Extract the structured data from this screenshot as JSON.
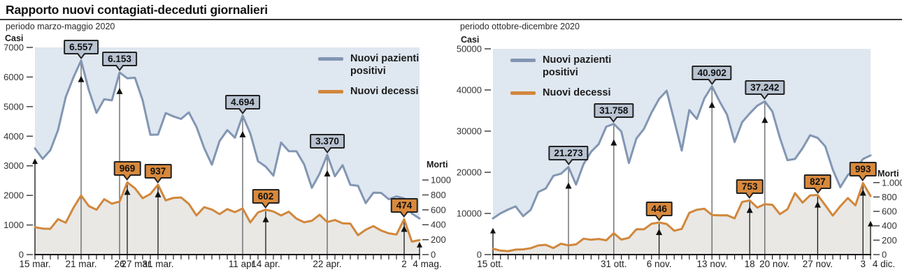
{
  "header": {
    "title": "Rapporto nuovi contagiati-deceduti giornalieri"
  },
  "legend": {
    "items": [
      {
        "id": "cases",
        "label": "Nuovi pazienti positivi",
        "color": "#8296b3"
      },
      {
        "id": "deaths",
        "label": "Nuovi decessi",
        "color": "#d1873c"
      }
    ]
  },
  "colors": {
    "cases_line": "#8296b3",
    "deaths_line": "#d1873c",
    "cases_fill": "#dfe7f0",
    "deaths_fill": "#e9e8e5",
    "callout_cases_bg": "#b9c4d2",
    "callout_deaths_bg": "#d8893c",
    "callout_border": "#222222",
    "annotation_line_cases": "#5d6166",
    "annotation_line_deaths": "#1a1a1a",
    "axis": "#111111",
    "tick_label": "#333333"
  },
  "chart_data": [
    {
      "type": "line",
      "subtitle": "periodo marzo-maggio 2020",
      "y_left": {
        "label": "Casi",
        "max": 7000,
        "ticks": [
          "7000",
          "6000",
          "5000",
          "4000",
          "3000",
          "2000",
          "1000",
          "0"
        ]
      },
      "y_right": {
        "label": "Morti",
        "max": 1000,
        "ticks": [
          "1000",
          "800",
          "600",
          "400",
          "200",
          "0"
        ],
        "cases_equivalent": 2520
      },
      "x_ticks": [
        {
          "label": "15 mar.",
          "day": 0
        },
        {
          "label": "21 mar.",
          "day": 6
        },
        {
          "label": "26",
          "day": 11
        },
        {
          "label": "27 mar.",
          "day": 12,
          "dx": 14
        },
        {
          "label": "31 mar.",
          "day": 16
        },
        {
          "label": "11 apr.",
          "day": 27
        },
        {
          "label": "14 apr.",
          "day": 30
        },
        {
          "label": "22 apr.",
          "day": 38
        },
        {
          "label": "2",
          "day": 48
        },
        {
          "label": "4 mag.",
          "day": 50,
          "dx": 11
        }
      ],
      "series": [
        {
          "id": "cases",
          "name": "Nuovi pazienti positivi",
          "axis": "left",
          "values": [
            3590,
            3233,
            3526,
            4207,
            5322,
            5986,
            6557,
            5560,
            4789,
            5249,
            5210,
            6153,
            5959,
            5974,
            5217,
            4050,
            4053,
            4782,
            4668,
            4585,
            4805,
            4316,
            3599,
            3039,
            3836,
            4204,
            3951,
            4694,
            4092,
            3153,
            2972,
            2667,
            3786,
            3493,
            3491,
            3047,
            2256,
            2729,
            3370,
            2646,
            3021,
            2357,
            2324,
            1739,
            2091,
            2086,
            1872,
            1965,
            1900,
            1389,
            1221
          ]
        },
        {
          "id": "deaths",
          "name": "Nuovi decessi",
          "axis": "right",
          "values": [
            368,
            349,
            345,
            475,
            427,
            627,
            793,
            651,
            601,
            743,
            683,
            712,
            969,
            889,
            756,
            812,
            937,
            727,
            760,
            766,
            681,
            525,
            636,
            604,
            542,
            610,
            570,
            619,
            431,
            566,
            602,
            578,
            525,
            575,
            482,
            433,
            454,
            534,
            437,
            464,
            420,
            415,
            260,
            333,
            382,
            323,
            285,
            269,
            474,
            174,
            195
          ]
        }
      ],
      "annotations": [
        {
          "series": "cases",
          "day": 6,
          "label": "6.557"
        },
        {
          "series": "cases",
          "day": 11,
          "label": "6.153"
        },
        {
          "series": "cases",
          "day": 27,
          "label": "4.694"
        },
        {
          "series": "cases",
          "day": 38,
          "label": "3.370"
        },
        {
          "series": "deaths",
          "day": 12,
          "label": "969"
        },
        {
          "series": "deaths",
          "day": 16,
          "label": "937"
        },
        {
          "series": "deaths",
          "day": 30,
          "label": "602"
        },
        {
          "series": "deaths",
          "day": 48,
          "label": "474"
        }
      ],
      "edge_markers": [
        {
          "day": 0,
          "tip_cases": 3250
        },
        {
          "day": 50,
          "tip_cases": 430
        }
      ]
    },
    {
      "type": "line",
      "subtitle": "periodo ottobre-dicembre 2020",
      "y_left": {
        "label": "Casi",
        "max": 50000,
        "ticks": [
          "50000",
          "40000",
          "30000",
          "20000",
          "10000",
          "0"
        ]
      },
      "y_right": {
        "label": "Morti",
        "max": 1000,
        "ticks": [
          "1.000",
          "800",
          "600",
          "400",
          "200",
          "0"
        ],
        "cases_equivalent": 17500
      },
      "x_ticks": [
        {
          "label": "15 ott.",
          "day": 0,
          "dx": -4
        },
        {
          "label": "31 ott.",
          "day": 16
        },
        {
          "label": "6 nov.",
          "day": 22
        },
        {
          "label": "13 nov.",
          "day": 29
        },
        {
          "label": "18",
          "day": 34
        },
        {
          "label": "20 nov.",
          "day": 36,
          "dx": 14
        },
        {
          "label": "27 nov.",
          "day": 43
        },
        {
          "label": "3",
          "day": 49
        },
        {
          "label": "4 dic.",
          "day": 50,
          "dx": 19
        }
      ],
      "series": [
        {
          "id": "cases",
          "name": "Nuovi pazienti positivi",
          "axis": "left",
          "values": [
            8804,
            10010,
            10925,
            11705,
            9338,
            10874,
            15199,
            16079,
            19143,
            19644,
            21273,
            17012,
            21994,
            24991,
            26831,
            31084,
            31758,
            29907,
            22253,
            28244,
            30550,
            34505,
            37809,
            39811,
            32616,
            25271,
            35098,
            32961,
            37978,
            40902,
            37255,
            33979,
            27354,
            32191,
            34283,
            36176,
            37242,
            34767,
            28337,
            22930,
            23232,
            25853,
            29003,
            28352,
            26323,
            20648,
            16377,
            19350,
            20709,
            23225,
            24099
          ]
        },
        {
          "id": "deaths",
          "name": "Nuovi decessi",
          "axis": "right",
          "values": [
            83,
            55,
            47,
            69,
            73,
            89,
            127,
            136,
            91,
            151,
            128,
            141,
            221,
            205,
            217,
            199,
            297,
            208,
            233,
            353,
            352,
            428,
            446,
            425,
            331,
            356,
            580,
            623,
            636,
            550,
            544,
            546,
            504,
            731,
            753,
            653,
            699,
            692,
            562,
            630,
            853,
            722,
            822,
            827,
            686,
            541,
            672,
            785,
            684,
            993,
            814
          ]
        }
      ],
      "annotations": [
        {
          "series": "cases",
          "day": 10,
          "label": "21.273"
        },
        {
          "series": "cases",
          "day": 16,
          "label": "31.758"
        },
        {
          "series": "cases",
          "day": 29,
          "label": "40.902"
        },
        {
          "series": "cases",
          "day": 36,
          "label": "37.242"
        },
        {
          "series": "deaths",
          "day": 22,
          "label": "446"
        },
        {
          "series": "deaths",
          "day": 34,
          "label": "753"
        },
        {
          "series": "deaths",
          "day": 43,
          "label": "827"
        },
        {
          "series": "deaths",
          "day": 49,
          "label": "993"
        }
      ],
      "edge_markers": [
        {
          "day": 0,
          "tip_cases": 6500
        },
        {
          "day": 50,
          "tip_cases": 8200
        }
      ]
    }
  ]
}
